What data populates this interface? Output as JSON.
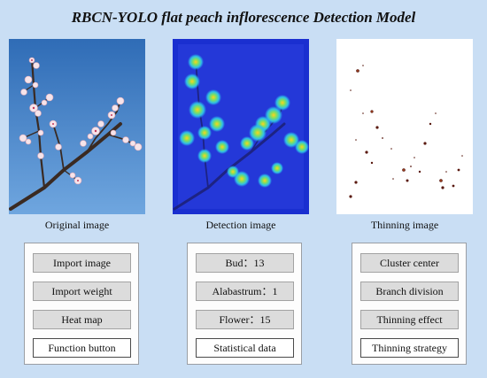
{
  "title": "RBCN-YOLO flat peach inflorescence Detection Model",
  "panels": {
    "original_caption": "Original image",
    "detection_caption": "Detection image",
    "thinning_caption": "Thinning image"
  },
  "function_box": {
    "import_image": "Import image",
    "import_weight": "Import weight",
    "heat_map": "Heat map",
    "label": "Function button"
  },
  "stats_box": {
    "bud": "Bud：13",
    "alabastrum": "Alabastrum：1",
    "flower": "Flower：15",
    "label": "Statistical data"
  },
  "thinning_box": {
    "cluster_center": "Cluster center",
    "branch_division": "Branch division",
    "thinning_effect": "Thinning effect",
    "label": "Thinning strategy"
  },
  "colors": {
    "background": "#c9def4",
    "sky": "#3f7fc4",
    "heatmap_base": "#1a2fd0",
    "button_fill": "#dcdcdc"
  }
}
